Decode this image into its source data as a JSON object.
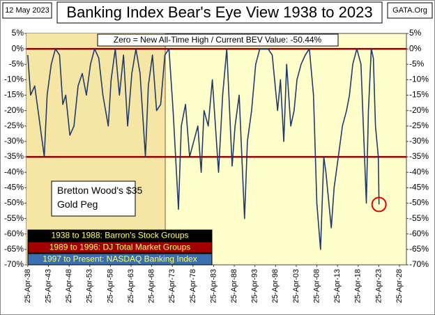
{
  "chart_data": {
    "type": "line",
    "title": "Banking Index Bear's Eye View 1938 to 2023",
    "date_label": "12 May 2023",
    "source": "GATA.Org",
    "subtitle": "Zero = New All-Time High / Current BEV Value:  -50.44%",
    "annotation": "Bretton Wood's $35 Gold Peg",
    "shaded_span": [
      1938,
      1971.6
    ],
    "ref_lines": [
      0,
      -35
    ],
    "legend_boxes": [
      {
        "text": "1938 to 1988: Barron's Stock Groups",
        "color": "#000000",
        "text_color": "#ffff66"
      },
      {
        "text": "1989 to 1996: DJ Total Market Groups",
        "color": "#a00000",
        "text_color": "#ffff66"
      },
      {
        "text": "1997 to Present: NASDAQ Banking Index",
        "color": "#3b6fb0",
        "text_color": "#ffff66"
      }
    ],
    "x": [
      1938.3,
      1939,
      1940,
      1941,
      1942.3,
      1943,
      1944,
      1945,
      1946,
      1946.8,
      1947.5,
      1948.5,
      1949.5,
      1950.5,
      1951.5,
      1952.5,
      1953.5,
      1954.5,
      1955.5,
      1956.5,
      1957.8,
      1958.5,
      1959.5,
      1960.5,
      1961.5,
      1962.5,
      1963.5,
      1964.5,
      1965.5,
      1966.8,
      1967.5,
      1968.5,
      1969.5,
      1970.5,
      1971.5,
      1972.5,
      1973.5,
      1974.8,
      1975.5,
      1976.5,
      1977.5,
      1978.5,
      1979.5,
      1980.3,
      1981,
      1982,
      1983,
      1984.5,
      1985.5,
      1986.5,
      1987.8,
      1988.5,
      1989.5,
      1990.8,
      1991.5,
      1992.5,
      1993.5,
      1994.5,
      1995.5,
      1996.5,
      1997.5,
      1998.8,
      1999.5,
      2000.3,
      2001,
      2002,
      2002.8,
      2003.5,
      2004.5,
      2005.5,
      2006.5,
      2007.5,
      2008.3,
      2009.2,
      2010,
      2010.5,
      2011.8,
      2012.5,
      2013.5,
      2014.5,
      2015.5,
      2016.2,
      2017,
      2018,
      2019,
      2020.3,
      2020.8,
      2021.5,
      2022,
      2022.5,
      2023.2,
      2023.36
    ],
    "series": [
      {
        "name": "BEV",
        "color": "#1f3a6b",
        "values": [
          -2,
          -15,
          -12,
          -22,
          -35,
          -15,
          -5,
          0,
          -2,
          -18,
          -15,
          -28,
          -25,
          -12,
          -8,
          -15,
          -5,
          0,
          -3,
          -15,
          -25,
          -10,
          0,
          -15,
          -2,
          -25,
          -8,
          0,
          -8,
          -35,
          -12,
          -2,
          -20,
          -18,
          -2,
          0,
          -20,
          -52,
          -25,
          -18,
          -35,
          -30,
          -25,
          -40,
          -20,
          -25,
          -10,
          -40,
          -15,
          0,
          -38,
          -25,
          -15,
          -55,
          -30,
          -20,
          -5,
          0,
          0,
          0,
          -2,
          -20,
          -10,
          -30,
          -5,
          -25,
          -20,
          -10,
          -5,
          -2,
          0,
          -15,
          -50,
          -65,
          -35,
          -40,
          -58,
          -45,
          -35,
          -25,
          -20,
          -15,
          -5,
          0,
          -5,
          -50,
          -20,
          0,
          -3,
          -25,
          -35,
          -50.44
        ]
      }
    ],
    "xlim": [
      1938,
      2030
    ],
    "ylim": [
      -70,
      5
    ],
    "xticks": [
      {
        "value": 1938.32,
        "label": "25-Apr-38"
      },
      {
        "value": 1943.32,
        "label": "25-Apr-43"
      },
      {
        "value": 1948.32,
        "label": "25-Apr-48"
      },
      {
        "value": 1953.32,
        "label": "25-Apr-53"
      },
      {
        "value": 1958.32,
        "label": "25-Apr-58"
      },
      {
        "value": 1963.32,
        "label": "25-Apr-63"
      },
      {
        "value": 1968.32,
        "label": "25-Apr-68"
      },
      {
        "value": 1973.32,
        "label": "25-Apr-73"
      },
      {
        "value": 1978.32,
        "label": "25-Apr-78"
      },
      {
        "value": 1983.32,
        "label": "25-Apr-83"
      },
      {
        "value": 1988.32,
        "label": "25-Apr-88"
      },
      {
        "value": 1993.32,
        "label": "25-Apr-93"
      },
      {
        "value": 1998.32,
        "label": "25-Apr-98"
      },
      {
        "value": 2003.32,
        "label": "25-Apr-03"
      },
      {
        "value": 2008.32,
        "label": "25-Apr-08"
      },
      {
        "value": 2013.32,
        "label": "25-Apr-13"
      },
      {
        "value": 2018.32,
        "label": "25-Apr-18"
      },
      {
        "value": 2023.32,
        "label": "25-Apr-23"
      },
      {
        "value": 2028.32,
        "label": "25-Apr-28"
      }
    ],
    "yticks": [
      {
        "value": 5,
        "label": "5%"
      },
      {
        "value": 0,
        "label": "0%"
      },
      {
        "value": -5,
        "label": "-5%"
      },
      {
        "value": -10,
        "label": "-10%"
      },
      {
        "value": -15,
        "label": "-15%"
      },
      {
        "value": -20,
        "label": "-20%"
      },
      {
        "value": -25,
        "label": "-25%"
      },
      {
        "value": -30,
        "label": "-30%"
      },
      {
        "value": -35,
        "label": "-35%"
      },
      {
        "value": -40,
        "label": "-40%"
      },
      {
        "value": -45,
        "label": "-45%"
      },
      {
        "value": -50,
        "label": "-50%"
      },
      {
        "value": -55,
        "label": "-55%"
      },
      {
        "value": -60,
        "label": "-60%"
      },
      {
        "value": -65,
        "label": "-65%"
      },
      {
        "value": -70,
        "label": "-70%"
      }
    ],
    "grid": false
  }
}
